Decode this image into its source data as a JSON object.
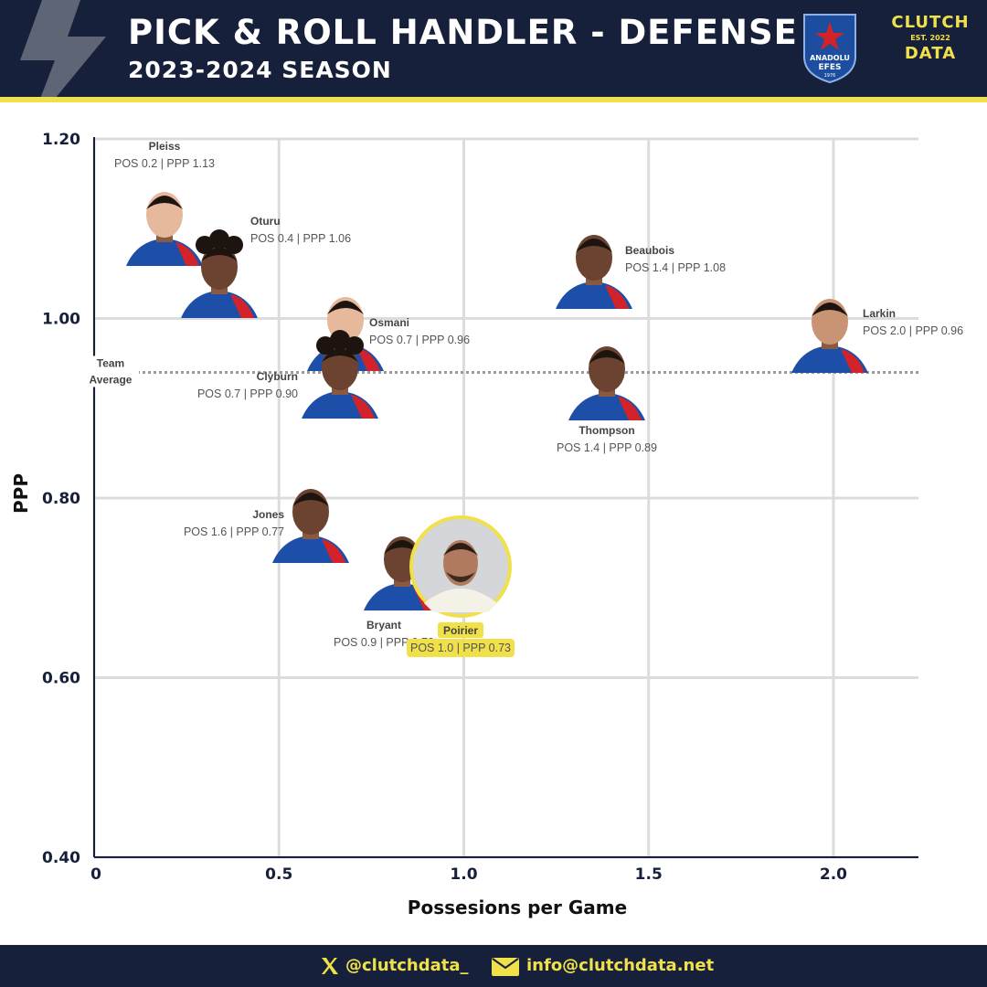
{
  "header": {
    "title": "PICK & ROLL HANDLER - DEFENSE",
    "subtitle": "2023-2024 SEASON",
    "team_logo": {
      "line1": "ANADOLU",
      "line2": "EFES",
      "year": "1976"
    },
    "brand_logo": {
      "line1": "CLUTCH",
      "line2": "EST. 2022",
      "line3": "DATA"
    }
  },
  "colors": {
    "navy": "#17203a",
    "accent_yellow": "#f0e04a",
    "jersey_blue": "#1e4fa8",
    "jersey_red": "#d2232a"
  },
  "chart_data": {
    "type": "scatter",
    "xlabel": "Possesions per Game",
    "ylabel": "PPP",
    "xlim": [
      0,
      2.23
    ],
    "ylim": [
      0.4,
      1.2
    ],
    "x_ticks": [
      "0",
      "0.5",
      "1.0",
      "1.5",
      "2.0"
    ],
    "x_tick_values": [
      0,
      0.5,
      1.0,
      1.5,
      2.0
    ],
    "y_ticks": [
      "0.40",
      "0.60",
      "0.80",
      "1.00",
      "1.20"
    ],
    "y_tick_values": [
      0.4,
      0.6,
      0.8,
      1.0,
      1.2
    ],
    "grid": true,
    "team_average": {
      "label_line1": "Team",
      "label_line2": "Average",
      "value": 0.94
    },
    "points": [
      {
        "name": "Pleiss",
        "stat": "POS 0.2 | PPP 1.13",
        "x": 0.2,
        "y": 1.13,
        "highlight": false
      },
      {
        "name": "Oturu",
        "stat": "POS 0.4 | PPP 1.06",
        "x": 0.4,
        "y": 1.06,
        "highlight": false
      },
      {
        "name": "Beaubois",
        "stat": "POS 1.4 | PPP 1.08",
        "x": 1.4,
        "y": 1.08,
        "highlight": false
      },
      {
        "name": "Larkin",
        "stat": "POS 2.0 | PPP 0.96",
        "x": 2.0,
        "y": 0.96,
        "highlight": false
      },
      {
        "name": "Osmani",
        "stat": "POS 0.7 | PPP 0.96",
        "x": 0.7,
        "y": 0.96,
        "highlight": false
      },
      {
        "name": "Clyburn",
        "stat": "POS 0.7 | PPP 0.90",
        "x": 0.7,
        "y": 0.9,
        "highlight": false
      },
      {
        "name": "Thompson",
        "stat": "POS 1.4 | PPP 0.89",
        "x": 1.4,
        "y": 0.89,
        "highlight": false
      },
      {
        "name": "Jones",
        "stat": "POS 1.6 | PPP 0.77",
        "x": 1.6,
        "y": 0.77,
        "highlight": false
      },
      {
        "name": "Bryant",
        "stat": "POS 0.9 | PPP 0.73",
        "x": 0.9,
        "y": 0.73,
        "highlight": false
      },
      {
        "name": "Poirier",
        "stat": "POS 1.0 | PPP 0.73",
        "x": 1.0,
        "y": 0.73,
        "highlight": true
      }
    ]
  },
  "footer": {
    "twitter_icon": "x-logo-icon",
    "twitter": "@clutchdata_",
    "email_icon": "envelope-icon",
    "email": "info@clutchdata.net"
  }
}
